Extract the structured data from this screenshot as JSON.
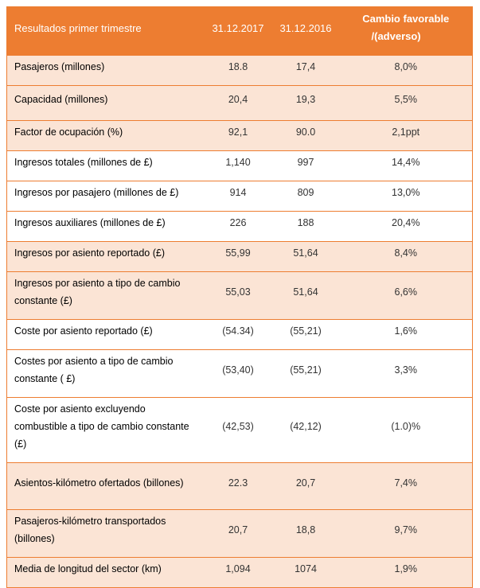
{
  "header": {
    "label": "Resultados primer trimestre",
    "col_2017": "31.12.2017",
    "col_2016": "31.12.2016",
    "col_change_line1": "Cambio favorable",
    "col_change_line2": "/(adverso)"
  },
  "colors": {
    "accent": "#ED7D31",
    "band": "#FBE4D5"
  },
  "rows": [
    {
      "label": "Pasajeros (millones)",
      "v2017": "18.8",
      "v2016": "17,4",
      "change": "8,0%",
      "shade": "peach"
    },
    {
      "label": "Capacidad (millones)",
      "v2017": "20,4",
      "v2016": "19,3",
      "change": "5,5%",
      "shade": "peach"
    },
    {
      "label": "Factor de ocupación (%)",
      "v2017": "92,1",
      "v2016": "90.0",
      "change": "2,1ppt",
      "shade": "peach"
    },
    {
      "label": "Ingresos totales (millones de  £)",
      "v2017": "1,140",
      "v2016": "997",
      "change": "14,4%",
      "shade": "white"
    },
    {
      "label": "Ingresos por pasajero (millones de  £)",
      "v2017": "914",
      "v2016": "809",
      "change": "13,0%",
      "shade": "white"
    },
    {
      "label": "Ingresos auxiliares (millones de  £)",
      "v2017": "226",
      "v2016": "188",
      "change": "20,4%",
      "shade": "white"
    },
    {
      "label": "Ingresos por asiento reportado (£)",
      "v2017": "55,99",
      "v2016": "51,64",
      "change": "8,4%",
      "shade": "peach"
    },
    {
      "label": "Ingresos por asiento a tipo de cambio constante  (£)",
      "v2017": "55,03",
      "v2016": "51,64",
      "change": "6,6%",
      "shade": "peach"
    },
    {
      "label": "Coste por asiento reportado (£)",
      "v2017": "(54.34)",
      "v2016": "(55,21)",
      "change": "1,6%",
      "shade": "white"
    },
    {
      "label": "Costes por asiento a tipo de cambio constante ( £)",
      "v2017": "(53,40)",
      "v2016": "(55,21)",
      "change": "3,3%",
      "shade": "white"
    },
    {
      "label": "Coste por asiento excluyendo combustible a tipo de cambio constante (£)",
      "v2017": "(42,53)",
      "v2016": "(42,12)",
      "change": "(1.0)%",
      "shade": "white"
    },
    {
      "label": "Asientos-kilómetro ofertados (billones)",
      "v2017": "22.3",
      "v2016": "20,7",
      "change": "7,4%",
      "shade": "peach"
    },
    {
      "label": "Pasajeros-kilómetro transportados (billones)",
      "v2017": "20,7",
      "v2016": "18,8",
      "change": "9,7%",
      "shade": "peach"
    },
    {
      "label": "Media de longitud del sector (km)",
      "v2017": "1,094",
      "v2016": "1074",
      "change": "1,9%",
      "shade": "peach"
    }
  ]
}
